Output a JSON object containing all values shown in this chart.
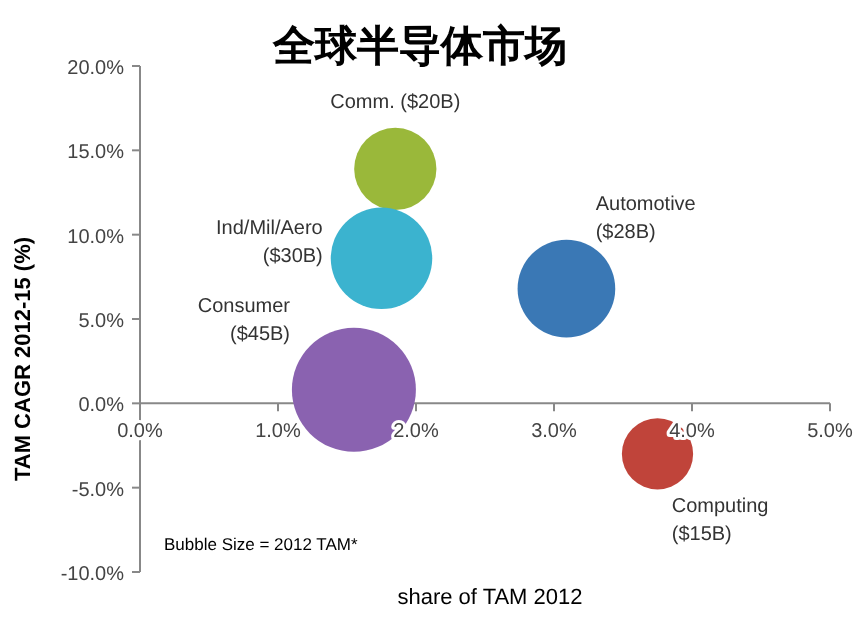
{
  "chart_data": {
    "type": "bubble",
    "title": "全球半导体市场",
    "xlabel": "share of TAM 2012",
    "ylabel": "TAM CAGR 2012-15 (%)",
    "x": [
      1.85,
      1.75,
      3.09,
      1.55,
      3.75
    ],
    "values": [
      13.9,
      8.6,
      6.8,
      0.8,
      -3.0
    ],
    "sizes": [
      0.44,
      0.67,
      0.62,
      1,
      0.33
    ],
    "colors": [
      "#9ab83a",
      "#3bb3cf",
      "#3a78b5",
      "#8a62b0",
      "#c0443a"
    ],
    "xlim": [
      0,
      5
    ],
    "ylim": [
      -10,
      20
    ],
    "xticks": [
      {
        "value": 0,
        "label": "0.0%"
      },
      {
        "value": 1,
        "label": "1.0%"
      },
      {
        "value": 2,
        "label": "2.0%"
      },
      {
        "value": 3,
        "label": "3.0%"
      },
      {
        "value": 4,
        "label": "4.0%"
      },
      {
        "value": 5,
        "label": "5.0%"
      }
    ],
    "yticks": [
      {
        "value": -10,
        "label": "-10.0%"
      },
      {
        "value": -5,
        "label": "-5.0%"
      },
      {
        "value": 0,
        "label": "0.0%"
      },
      {
        "value": 5,
        "label": "5.0%"
      },
      {
        "value": 10,
        "label": "10.0%"
      },
      {
        "value": 15,
        "label": "15.0%"
      },
      {
        "value": 20,
        "label": "20.0%"
      }
    ],
    "annotations": [
      {
        "text": "Comm. ($20B)",
        "x": 1.85,
        "y": 13.9
      },
      {
        "text": "Ind/Mil/Aero\n($30B)",
        "x": 1.75,
        "y": 8.6
      },
      {
        "text": "Automotive\n($28B)",
        "x": 3.09,
        "y": 6.8
      },
      "Consumer\n($45B)",
      {
        "text": "Computing\n($15B)",
        "x": 3.75,
        "y": -3.0
      },
      "Bubble Size = 2012 TAM*"
    ],
    "marker": "circle",
    "grid": false
  }
}
